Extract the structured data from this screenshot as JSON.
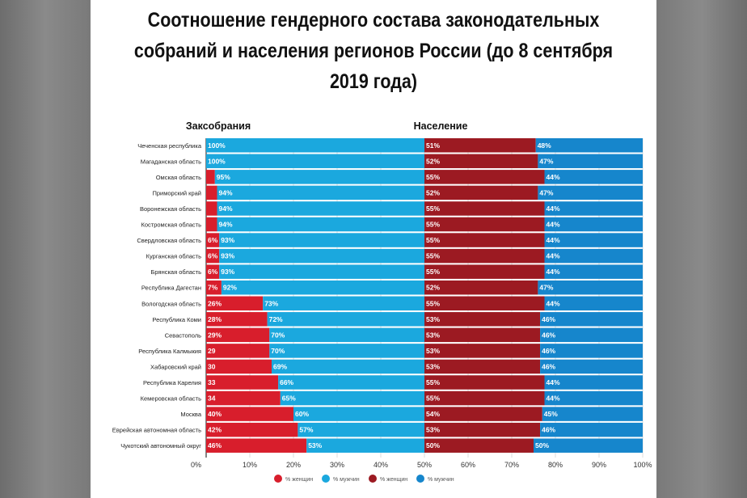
{
  "title": "Соотношение гендерного состава законодательных собраний и населения регионов России (до 8 сентября 2019 года)",
  "chart_data": {
    "type": "bar",
    "stacked": true,
    "orientation": "horizontal",
    "panels": [
      {
        "heading": "Заксобрания",
        "colors": {
          "women": "#d81e2c",
          "men": "#1ba8de"
        }
      },
      {
        "heading": "Население",
        "colors": {
          "women": "#9c1a22",
          "men": "#1686cc"
        }
      }
    ],
    "categories": [
      "Чеченская республика",
      "Магаданская область",
      "Омская область",
      "Приморский край",
      "Воронежская область",
      "Костромская область",
      "Свердловская область",
      "Курганская область",
      "Брянская область",
      "Республика Дагестан",
      "Вологодская область",
      "Республика Коми",
      "Севастополь",
      "Республика Калмыкия",
      "Хабаровский край",
      "Республика Карелия",
      "Кемеровская область",
      "Москва",
      "Еврейская автономная область",
      "Чукотский автономный округ"
    ],
    "assembly_women": [
      0,
      0,
      4,
      5,
      5,
      5,
      6,
      6,
      6,
      7,
      26,
      28,
      29,
      29,
      30,
      33,
      34,
      40,
      42,
      46
    ],
    "assembly_women_labels": [
      "",
      "",
      "",
      "",
      "",
      "",
      "6%",
      "6%",
      "6%",
      "7%",
      "26%",
      "28%",
      "29%",
      "29",
      "30",
      "33",
      "34",
      "40%",
      "42%",
      "46%"
    ],
    "assembly_men": [
      100,
      100,
      95,
      94,
      94,
      94,
      93,
      93,
      93,
      92,
      73,
      72,
      70,
      70,
      69,
      66,
      65,
      60,
      57,
      53
    ],
    "population_women": [
      51,
      52,
      55,
      52,
      55,
      55,
      55,
      55,
      55,
      52,
      55,
      53,
      53,
      53,
      53,
      55,
      55,
      54,
      53,
      50
    ],
    "population_men": [
      48,
      47,
      44,
      47,
      44,
      44,
      44,
      44,
      44,
      47,
      44,
      46,
      46,
      46,
      46,
      44,
      44,
      45,
      46,
      50
    ],
    "x_ticks": [
      "0%",
      "10%",
      "20%",
      "30%",
      "40%",
      "50%",
      "60%",
      "70%",
      "80%",
      "90%",
      "100%"
    ],
    "xlim": [
      0,
      100
    ],
    "grid": true,
    "legend": {
      "position": "bottom",
      "items": [
        {
          "label": "% женщин",
          "color": "#d81e2c"
        },
        {
          "label": "% мужчин",
          "color": "#1ba8de"
        },
        {
          "label": "% женщин",
          "color": "#9c1a22"
        },
        {
          "label": "% мужчин",
          "color": "#1686cc"
        }
      ]
    }
  }
}
